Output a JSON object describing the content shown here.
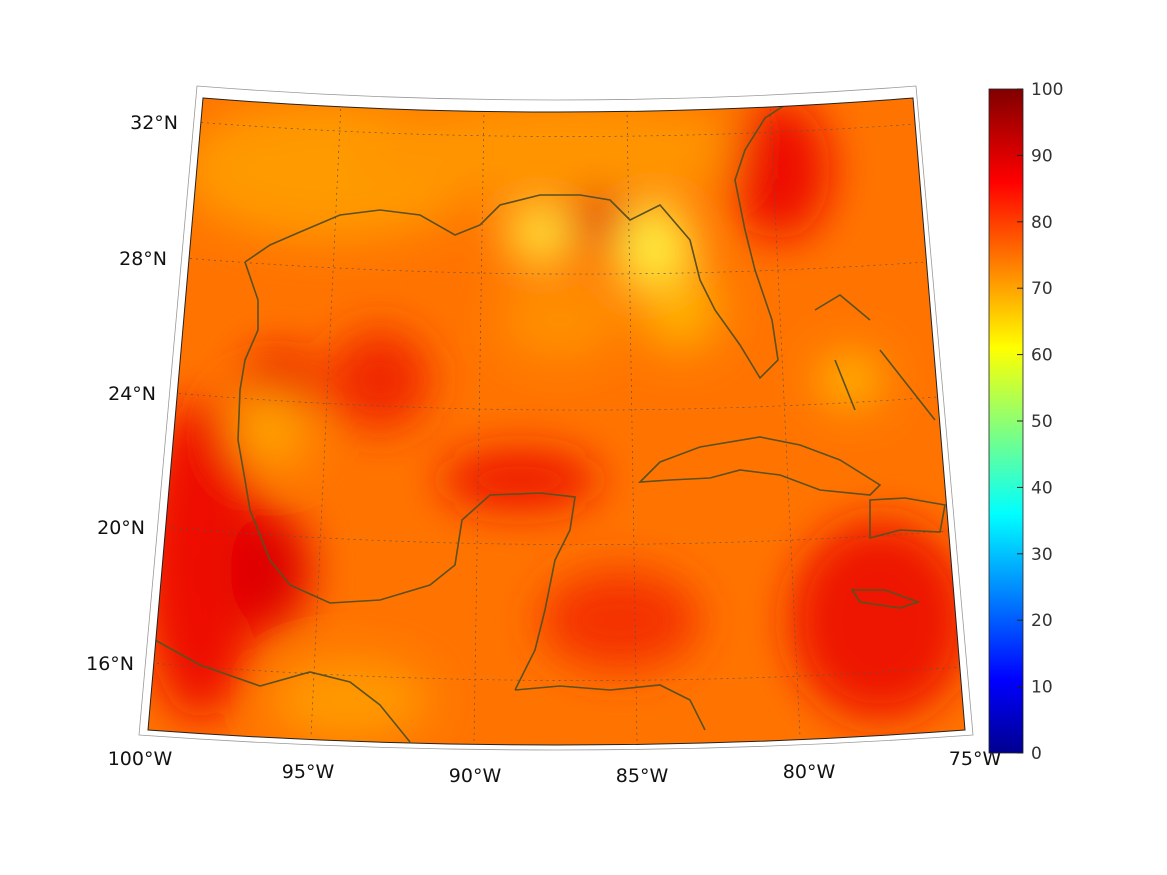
{
  "map": {
    "lat_labels": [
      "32°N",
      "28°N",
      "24°N",
      "20°N",
      "16°N"
    ],
    "lon_labels": [
      "100°W",
      "95°W",
      "90°W",
      "85°W",
      "80°W",
      "75°W"
    ],
    "colors": {
      "coast": "#5a5020",
      "base": "#ff7a00"
    }
  },
  "colorbar": {
    "ticks": [
      "0",
      "10",
      "20",
      "30",
      "40",
      "50",
      "60",
      "70",
      "80",
      "90",
      "100"
    ],
    "range": [
      0,
      100
    ]
  }
}
